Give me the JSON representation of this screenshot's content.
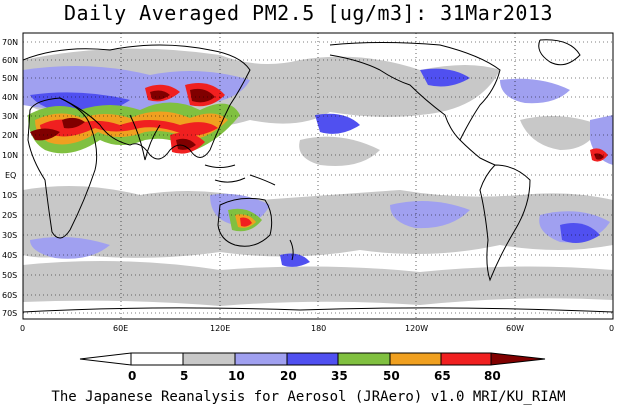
{
  "title": "Daily Averaged PM2.5 [ug/m3]: 31Mar2013",
  "credit": "The Japanese Reanalysis for Aerosol (JRAero) v1.0 MRI/KU_RIAM",
  "map": {
    "lat_labels": [
      "70N",
      "60N",
      "50N",
      "40N",
      "30N",
      "20N",
      "10N",
      "EQ",
      "10S",
      "20S",
      "30S",
      "40S",
      "50S",
      "60S",
      "70S"
    ],
    "lon_labels": [
      "0",
      "60E",
      "120E",
      "180",
      "120W",
      "60W",
      "0"
    ]
  },
  "colorbar": {
    "levels": [
      "0",
      "5",
      "10",
      "20",
      "35",
      "50",
      "65",
      "80"
    ],
    "colors": [
      "#ffffff",
      "#c8c8c8",
      "#a0a0f0",
      "#5050f0",
      "#80c040",
      "#f0a020",
      "#f02020",
      "#800000"
    ]
  }
}
